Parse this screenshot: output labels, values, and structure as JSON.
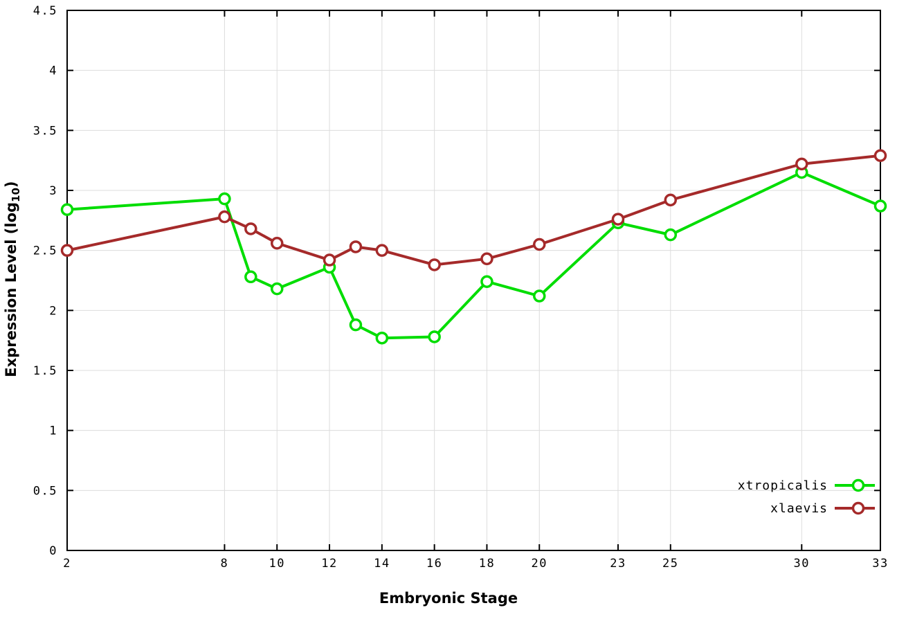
{
  "chart_data": {
    "type": "line",
    "title": "",
    "xlabel": "Embryonic Stage",
    "ylabel": "Expression Level (log10)",
    "ylabel_parts": {
      "prefix": "Expression Level (log",
      "sub": "10",
      "suffix": ")"
    },
    "xlim": [
      2,
      33
    ],
    "ylim": [
      0,
      4.5
    ],
    "xticks": [
      2,
      8,
      10,
      12,
      14,
      16,
      18,
      20,
      23,
      25,
      30,
      33
    ],
    "xtick_labels": [
      "2",
      "8",
      "10",
      "12",
      "14",
      "16",
      "18",
      "20",
      "23",
      "25",
      "30",
      "33"
    ],
    "yticks": [
      0,
      0.5,
      1,
      1.5,
      2,
      2.5,
      3,
      3.5,
      4,
      4.5
    ],
    "ytick_labels": [
      "0",
      "0.5",
      "1",
      "1.5",
      "2",
      "2.5",
      "3",
      "3.5",
      "4",
      "4.5"
    ],
    "grid": true,
    "legend_position": "bottom-right",
    "x": [
      2,
      8,
      9,
      10,
      12,
      13,
      14,
      16,
      18,
      20,
      23,
      25,
      30,
      33
    ],
    "series": [
      {
        "name": "xtropicalis",
        "color": "#00dd00",
        "values": [
          2.84,
          2.93,
          2.28,
          2.18,
          2.36,
          1.88,
          1.77,
          1.78,
          2.24,
          2.12,
          2.73,
          2.63,
          3.15,
          2.87
        ]
      },
      {
        "name": "xlaevis",
        "color": "#a52a2a",
        "values": [
          2.5,
          2.78,
          2.68,
          2.56,
          2.42,
          2.53,
          2.5,
          2.38,
          2.43,
          2.55,
          2.76,
          2.92,
          3.22,
          3.29
        ]
      }
    ],
    "style": {
      "grid_color": "#dcdcdc",
      "border_color": "#000000",
      "background": "#ffffff",
      "line_width": 4,
      "marker_radius": 7.5,
      "marker_stroke": 3.5
    }
  }
}
